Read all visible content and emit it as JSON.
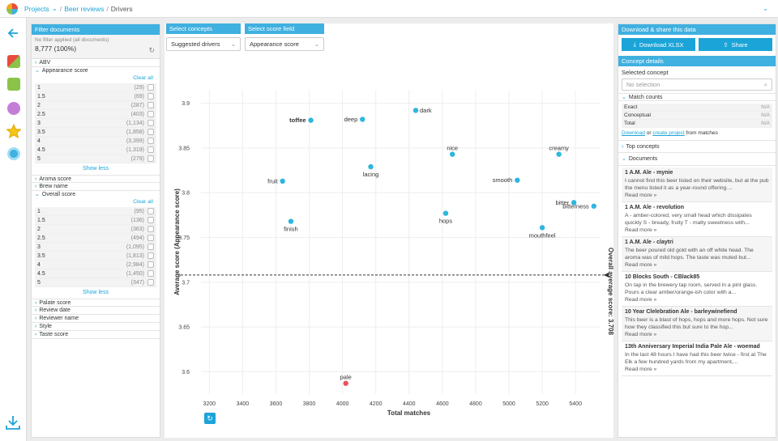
{
  "breadcrumb": {
    "projects": "Projects",
    "chevron": "⌄",
    "sep1": "/",
    "project": "Beer reviews",
    "sep2": "/",
    "page": "Drivers",
    "top_chevron": "⌄"
  },
  "filter": {
    "title": "Filter documents",
    "no_filter": "No filter applied (all documents)",
    "count": "8,777 (100%)",
    "abv": "ABV",
    "appearance": "Appearance score",
    "clear_all": "Clear all",
    "appearance_rows": [
      [
        "1",
        "(29)"
      ],
      [
        "1.5",
        "(69)"
      ],
      [
        "2",
        "(287)"
      ],
      [
        "2.5",
        "(403)"
      ],
      [
        "3",
        "(1,134)"
      ],
      [
        "3.5",
        "(1,858)"
      ],
      [
        "4",
        "(3,399)"
      ],
      [
        "4.5",
        "(1,319)"
      ],
      [
        "5",
        "(279)"
      ]
    ],
    "show_less": "Show less",
    "aroma": "Aroma score",
    "brew": "Brew name",
    "overall": "Overall score",
    "overall_rows": [
      [
        "1",
        "(95)"
      ],
      [
        "1.5",
        "(136)"
      ],
      [
        "2",
        "(363)"
      ],
      [
        "2.5",
        "(494)"
      ],
      [
        "3",
        "(1,095)"
      ],
      [
        "3.5",
        "(1,813)"
      ],
      [
        "4",
        "(2,984)"
      ],
      [
        "4.5",
        "(1,450)"
      ],
      [
        "5",
        "(347)"
      ]
    ],
    "palate": "Palate score",
    "review_date": "Review date",
    "reviewer": "Reviewer name",
    "style": "Style",
    "taste": "Taste score"
  },
  "controls": {
    "concepts_label": "Select concepts",
    "concepts_value": "Suggested drivers",
    "score_label": "Select score field",
    "score_value": "Appearance score"
  },
  "chart_data": {
    "type": "scatter",
    "xlabel": "Total matches",
    "ylabel": "Average score (Appearance score)",
    "xlim": [
      3150,
      5550
    ],
    "ylim": [
      3.575,
      3.915
    ],
    "xticks": [
      3200,
      3400,
      3600,
      3800,
      4000,
      4200,
      4400,
      4600,
      4800,
      5000,
      5200,
      5400
    ],
    "yticks": [
      3.6,
      3.65,
      3.7,
      3.75,
      3.8,
      3.85,
      3.9
    ],
    "reference_line": {
      "value": 3.708,
      "label": "Overall average score: 3.708"
    },
    "points": [
      {
        "label": "toffee",
        "x": 3810,
        "y": 3.881,
        "bold": true,
        "anchor": "left"
      },
      {
        "label": "deep",
        "x": 4120,
        "y": 3.882,
        "bold": false,
        "anchor": "left"
      },
      {
        "label": "dark",
        "x": 4440,
        "y": 3.892,
        "bold": false,
        "anchor": "right"
      },
      {
        "label": "nice",
        "x": 4660,
        "y": 3.843,
        "bold": false,
        "anchor": "above"
      },
      {
        "label": "creamy",
        "x": 5300,
        "y": 3.843,
        "bold": false,
        "anchor": "above"
      },
      {
        "label": "lacing",
        "x": 4170,
        "y": 3.829,
        "bold": false,
        "anchor": "below"
      },
      {
        "label": "smooth",
        "x": 5050,
        "y": 3.814,
        "bold": false,
        "anchor": "left"
      },
      {
        "label": "fruit",
        "x": 3640,
        "y": 3.813,
        "bold": false,
        "anchor": "left"
      },
      {
        "label": "bitter",
        "x": 5390,
        "y": 3.789,
        "bold": false,
        "anchor": "left"
      },
      {
        "label": "bitterness",
        "x": 5510,
        "y": 3.785,
        "bold": false,
        "anchor": "left"
      },
      {
        "label": "hops",
        "x": 4620,
        "y": 3.777,
        "bold": false,
        "anchor": "below"
      },
      {
        "label": "finish",
        "x": 3690,
        "y": 3.768,
        "bold": false,
        "anchor": "below"
      },
      {
        "label": "mouthfeel",
        "x": 5200,
        "y": 3.761,
        "bold": false,
        "anchor": "below"
      },
      {
        "label": "pale",
        "x": 4020,
        "y": 3.587,
        "bold": false,
        "anchor": "above",
        "color": "#e8545a"
      }
    ],
    "point_color": "#2eb6e0"
  },
  "right": {
    "download_title": "Download & share this data",
    "xlsx": "Download XLSX",
    "share": "Share",
    "concept_details": "Concept details",
    "selected_concept": "Selected concept",
    "no_selection": "No selection",
    "match_counts": "Match counts",
    "counts": [
      [
        "Exact",
        "N/A"
      ],
      [
        "Conceptual",
        "N/A"
      ],
      [
        "Total",
        "N/A"
      ]
    ],
    "download": "Download",
    "or": " or ",
    "create_project": "create project",
    "from_matches": " from matches",
    "top_concepts": "Top concepts",
    "documents": "Documents",
    "docs": [
      {
        "title": "1 A.M. Ale - mynie",
        "body": "I cannot find this beer listed on their website, but at the pub the menu listed it as a year-round offering....",
        "more": "Read more »"
      },
      {
        "title": "1 A.M. Ale - revolution",
        "body": "A - amber-colored, very small head which dissipates quickly S - bready, fruity T - malty sweetness with...",
        "more": "Read more »"
      },
      {
        "title": "1 A.M. Ale - claytri",
        "body": "The beer poured old gold with an off white head. The aroma was of mild hops. The taste was muted but...",
        "more": "Read more »"
      },
      {
        "title": "10 Blocks South - CBlack85",
        "body": "On tap in the brewery tap room, served in a pint glass. Pours a clear amber/orange-ish color with a...",
        "more": "Read more »"
      },
      {
        "title": "10 Year Clelebration Ale - barleywinefiend",
        "body": "This beer is a blast of hops, hops and more hops. Not sure how they classified this but sure to the hop...",
        "more": "Read more »"
      },
      {
        "title": "13th Anniversary Imperial India Pale Ale - woemad",
        "body": "In the last 48 hours I have had this beer twice - first at The Elk a few hundred yards from my apartment,...",
        "more": "Read more »"
      }
    ]
  }
}
